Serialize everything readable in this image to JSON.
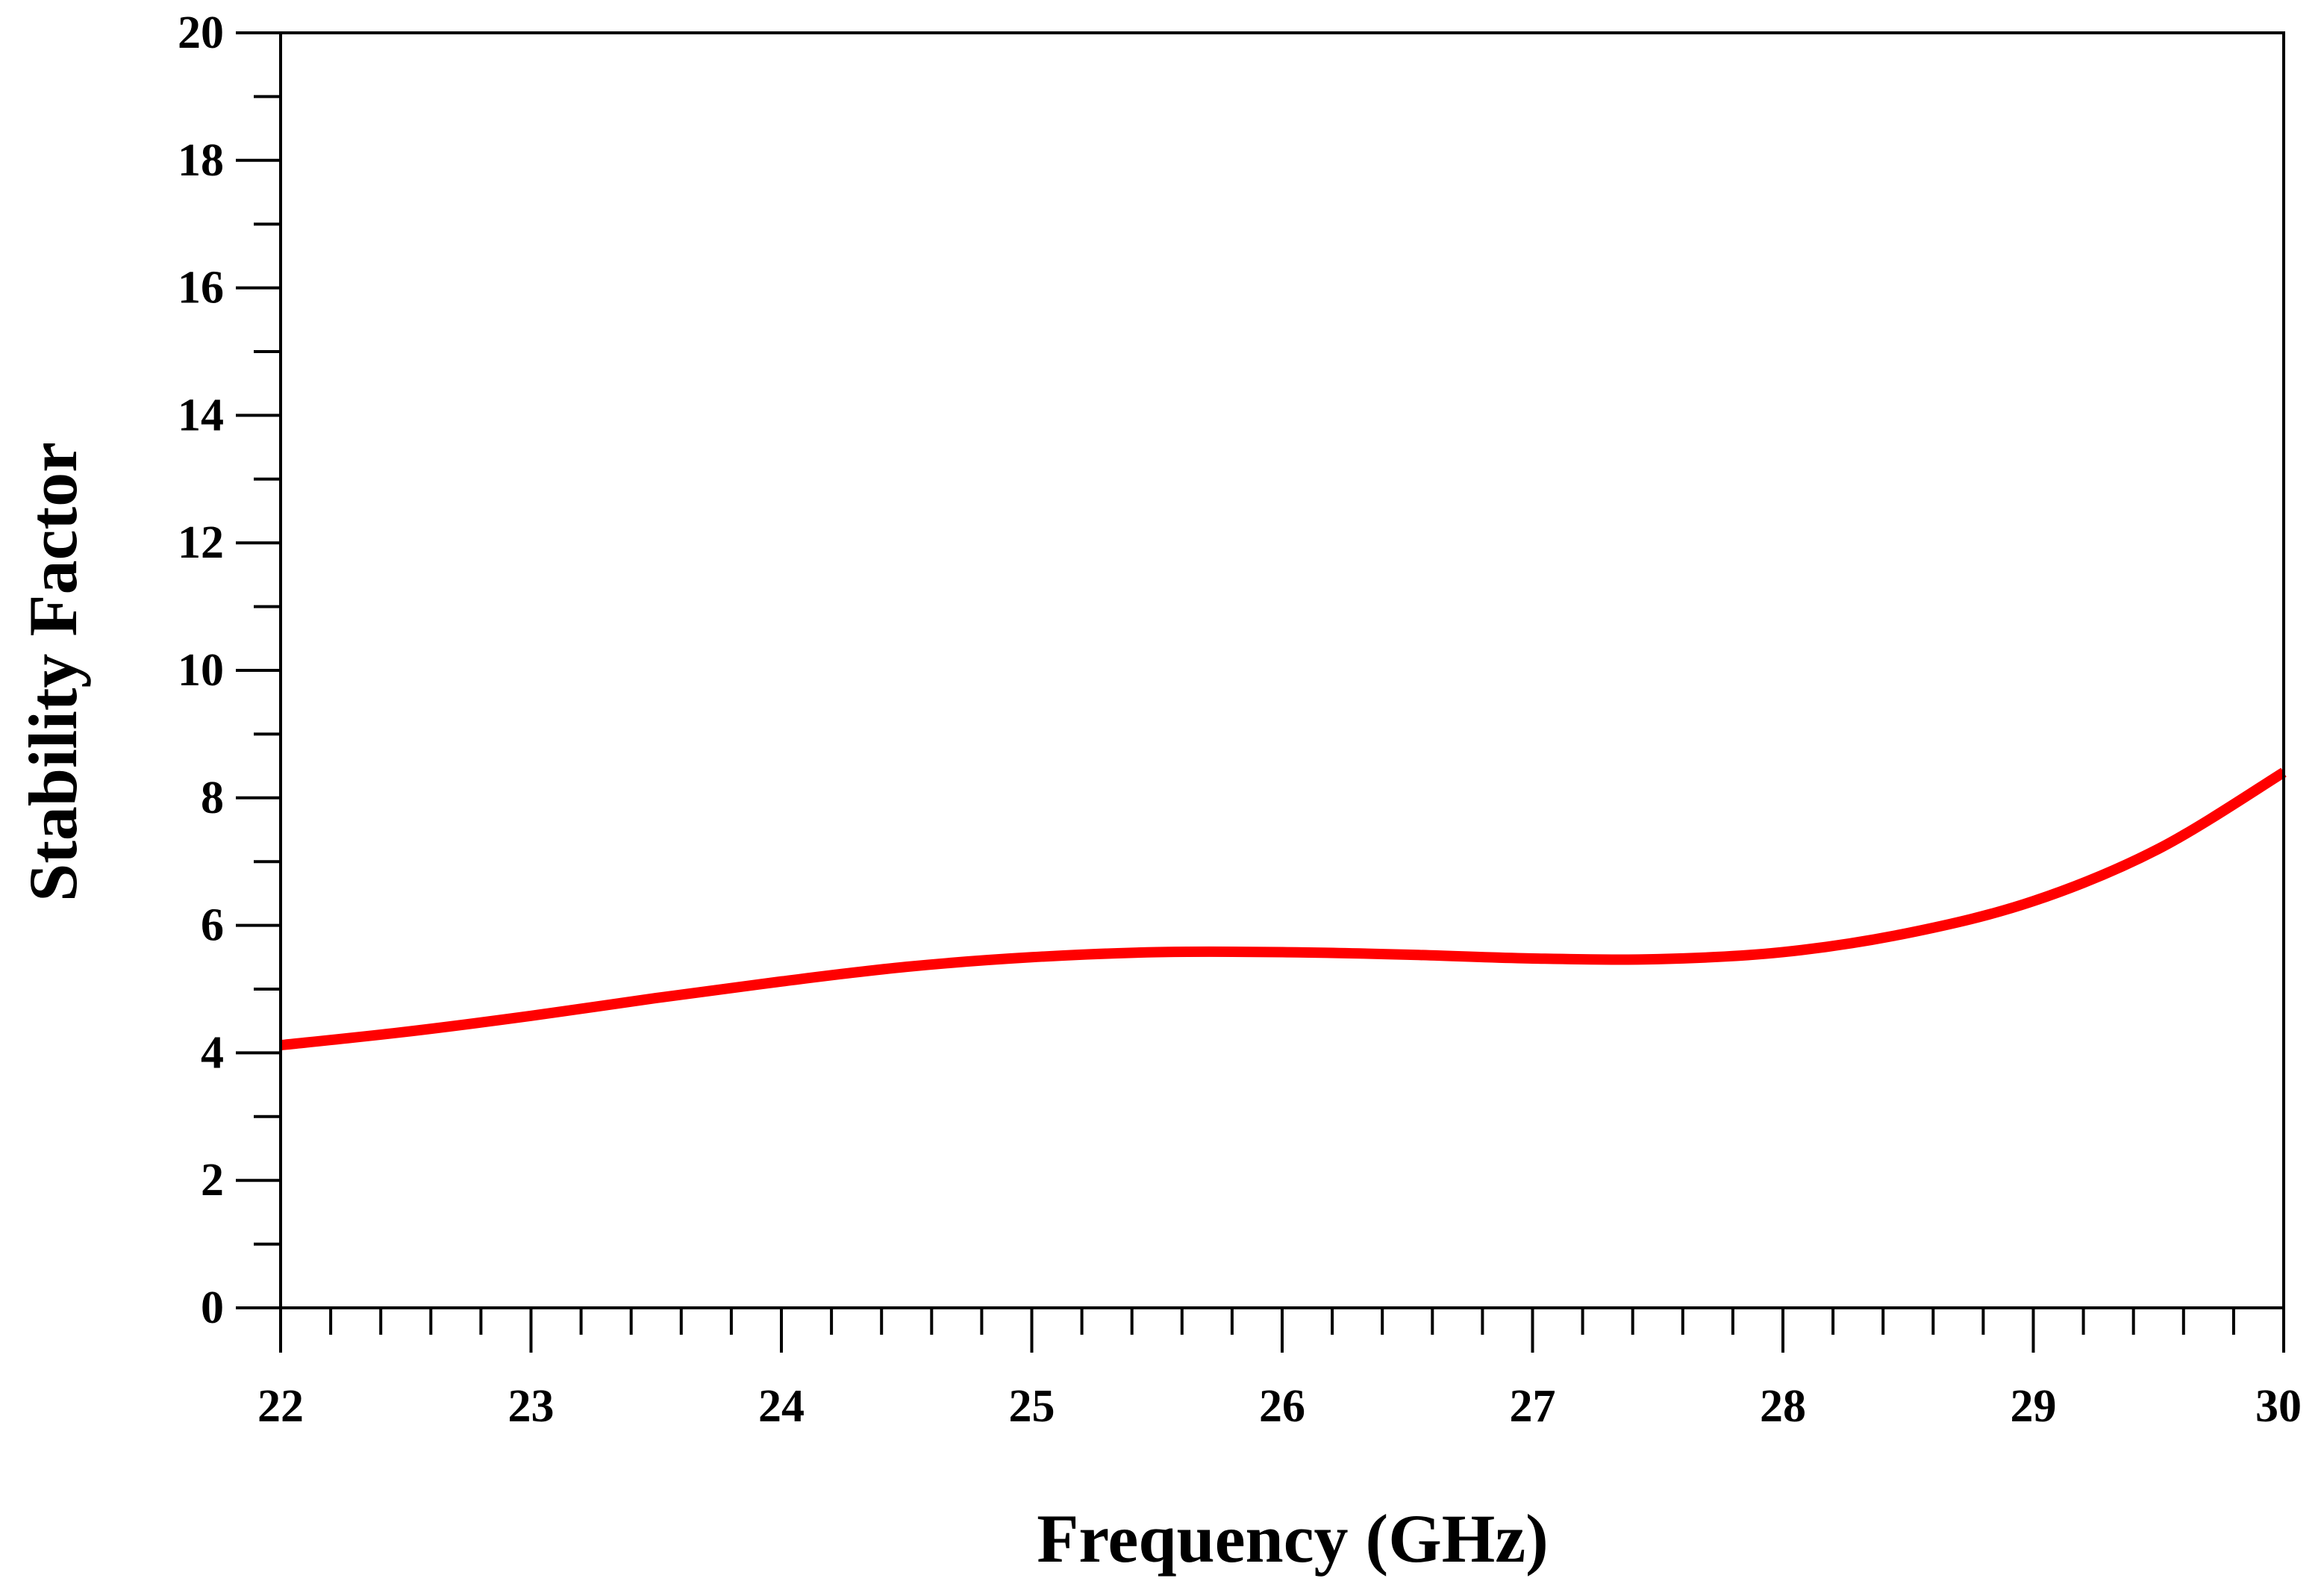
{
  "chart_data": {
    "type": "line",
    "title": "",
    "xlabel": "Frequency (GHz)",
    "ylabel": "Stability Factor",
    "xlim": [
      22,
      30
    ],
    "ylim": [
      0,
      20
    ],
    "x_ticks": [
      "22",
      "23",
      "24",
      "25",
      "26",
      "27",
      "28",
      "29",
      "30"
    ],
    "y_ticks": [
      "0",
      "2",
      "4",
      "6",
      "8",
      "10",
      "12",
      "14",
      "16",
      "18",
      "20"
    ],
    "x_minor_step": 0.2,
    "y_minor_step": 1,
    "grid": false,
    "legend": "none",
    "series": [
      {
        "color": "#ff0000",
        "x": [
          22.0,
          22.5,
          23.0,
          23.5,
          24.0,
          24.5,
          25.0,
          25.5,
          26.0,
          26.5,
          27.0,
          27.5,
          28.0,
          28.5,
          29.0,
          29.5,
          30.0
        ],
        "y": [
          4.12,
          4.33,
          4.58,
          4.86,
          5.12,
          5.35,
          5.5,
          5.58,
          5.58,
          5.54,
          5.48,
          5.47,
          5.58,
          5.88,
          6.38,
          7.2,
          8.4
        ]
      }
    ]
  }
}
